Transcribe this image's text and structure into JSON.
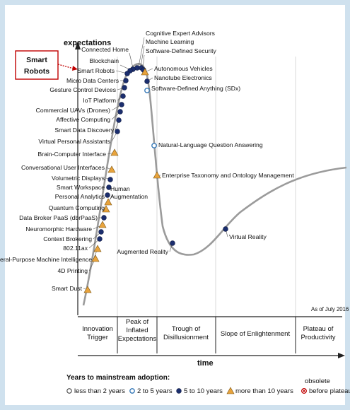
{
  "callout": {
    "line1": "Smart",
    "line2": "Robots"
  },
  "chart_data": {
    "type": "scatter",
    "title": "",
    "ylabel": "expectations",
    "xlabel": "time",
    "as_of": "As of July 2016",
    "phases": [
      {
        "key": "innovation",
        "lines": [
          "Innovation",
          "Trigger"
        ]
      },
      {
        "key": "peak",
        "lines": [
          "Peak of",
          "Inflated",
          "Expectations"
        ]
      },
      {
        "key": "trough",
        "lines": [
          "Trough of",
          "Disillusionment"
        ]
      },
      {
        "key": "slope",
        "lines": [
          "Slope of Enlightenment"
        ]
      },
      {
        "key": "plateau",
        "lines": [
          "Plateau of",
          "Productivity"
        ]
      }
    ],
    "legend": {
      "title": "Years to mainstream adoption:",
      "items": [
        {
          "marker": "open",
          "label": "less than 2 years"
        },
        {
          "marker": "light",
          "label": "2 to 5 years"
        },
        {
          "marker": "filled",
          "label": "5 to 10 years"
        },
        {
          "marker": "triangle",
          "label": "more than 10 years"
        },
        {
          "marker": "obsolete",
          "label": "before plateau",
          "label_top": "obsolete"
        }
      ]
    },
    "colors": {
      "filled": "#1b2e6e",
      "light": "#2f74b5",
      "triangle": "#e8a33c",
      "curve": "#9b9b9b",
      "callout": "#c00000"
    },
    "technologies": [
      {
        "name": "Cognitive Expert Advisors",
        "category": "filled",
        "phase": "peak"
      },
      {
        "name": "Machine Learning",
        "category": "filled",
        "phase": "peak"
      },
      {
        "name": "Software-Defined Security",
        "category": "filled",
        "phase": "peak"
      },
      {
        "name": "Autonomous Vehicles",
        "category": "triangle",
        "phase": "peak"
      },
      {
        "name": "Nanotube Electronics",
        "category": "filled",
        "phase": "peak"
      },
      {
        "name": "Software-Defined Anything (SDx)",
        "category": "light",
        "phase": "peak"
      },
      {
        "name": "Connected Home",
        "category": "filled",
        "phase": "innovation"
      },
      {
        "name": "Blockchain",
        "category": "filled",
        "phase": "innovation"
      },
      {
        "name": "Smart Robots",
        "category": "filled",
        "phase": "innovation"
      },
      {
        "name": "Micro Data Centers",
        "category": "filled",
        "phase": "innovation"
      },
      {
        "name": "Gesture Control Devices",
        "category": "filled",
        "phase": "innovation"
      },
      {
        "name": "IoT Platform",
        "category": "filled",
        "phase": "innovation"
      },
      {
        "name": "Commercial UAVs (Drones)",
        "category": "filled",
        "phase": "innovation"
      },
      {
        "name": "Affective Computing",
        "category": "filled",
        "phase": "innovation"
      },
      {
        "name": "Smart Data Discovery",
        "category": "filled",
        "phase": "innovation"
      },
      {
        "name": "Virtual Personal Assistants",
        "category": "filled",
        "phase": "innovation"
      },
      {
        "name": "Brain-Computer Interface",
        "category": "triangle",
        "phase": "innovation"
      },
      {
        "name": "Conversational User Interfaces",
        "category": "triangle",
        "phase": "innovation"
      },
      {
        "name": "Volumetric Displays",
        "category": "filled",
        "phase": "innovation"
      },
      {
        "name": "Smart Workspace",
        "category": "filled",
        "phase": "innovation"
      },
      {
        "name": "Personal Analytics",
        "category": "filled",
        "phase": "innovation"
      },
      {
        "name": "Human Augmentation",
        "category": "triangle",
        "phase": "innovation"
      },
      {
        "name": "Quantum Computing",
        "category": "triangle",
        "phase": "innovation"
      },
      {
        "name": "Data Broker PaaS (dbrPaaS)",
        "category": "filled",
        "phase": "innovation"
      },
      {
        "name": "Neuromorphic Hardware",
        "category": "triangle",
        "phase": "innovation"
      },
      {
        "name": "Context Brokering",
        "category": "filled",
        "phase": "innovation"
      },
      {
        "name": "802.11ax",
        "category": "filled",
        "phase": "innovation"
      },
      {
        "name": "General-Purpose Machine Intelligence",
        "category": "triangle",
        "phase": "innovation"
      },
      {
        "name": "4D Printing",
        "category": "triangle",
        "phase": "innovation"
      },
      {
        "name": "Smart Dust",
        "category": "triangle",
        "phase": "innovation"
      },
      {
        "name": "Natural-Language Question Answering",
        "category": "light",
        "phase": "trough"
      },
      {
        "name": "Enterprise Taxonomy and Ontology Management",
        "category": "triangle",
        "phase": "trough"
      },
      {
        "name": "Augmented Reality",
        "category": "filled",
        "phase": "trough"
      },
      {
        "name": "Virtual Reality",
        "category": "filled",
        "phase": "slope"
      }
    ]
  }
}
